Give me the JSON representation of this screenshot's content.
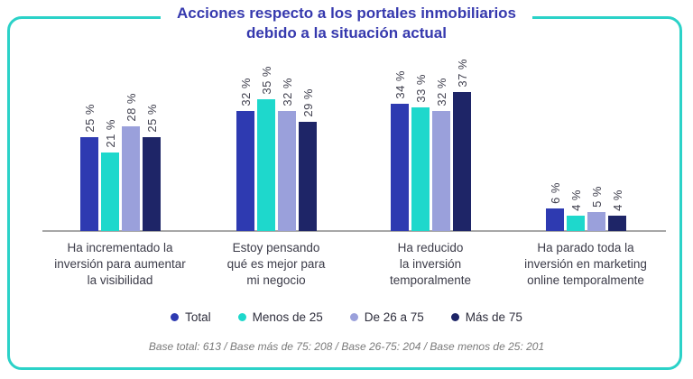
{
  "header": {
    "title_line1": "Acciones respecto a los portales inmobiliarios",
    "title_line2": "debido a la situación actual"
  },
  "chart_data": {
    "type": "bar",
    "title": "Acciones respecto a los portales inmobiliarios debido a la situación actual",
    "categories": [
      "Ha incrementado la\ninversión para aumentar\nla visibilidad",
      "Estoy pensando\nqué es mejor para\nmi negocio",
      "Ha reducido\nla inversión\ntemporalmente",
      "Ha parado toda la\ninversión en marketing\nonline temporalmente"
    ],
    "series": [
      {
        "name": "Total",
        "color": "#2e3ab1",
        "values": [
          25,
          32,
          34,
          6
        ]
      },
      {
        "name": "Menos de 25",
        "color": "#1ed8cc",
        "values": [
          21,
          35,
          33,
          4
        ]
      },
      {
        "name": "De 26 a 75",
        "color": "#9aa0db",
        "values": [
          28,
          32,
          32,
          5
        ]
      },
      {
        "name": "Más de 75",
        "color": "#1e2567",
        "values": [
          25,
          29,
          37,
          4
        ]
      }
    ],
    "value_suffix": " %",
    "ylim": [
      0,
      40
    ],
    "grid": false,
    "legend_position": "bottom",
    "footnote": "Base total: 613 / Base más de 75: 208 / Base 26-75: 204 / Base menos de 25: 201"
  },
  "colors": {
    "border_teal": "#2bd2c8",
    "title_blue": "#3639ae",
    "axis_gray": "#a7a7a7",
    "value_label": "#41414f"
  }
}
